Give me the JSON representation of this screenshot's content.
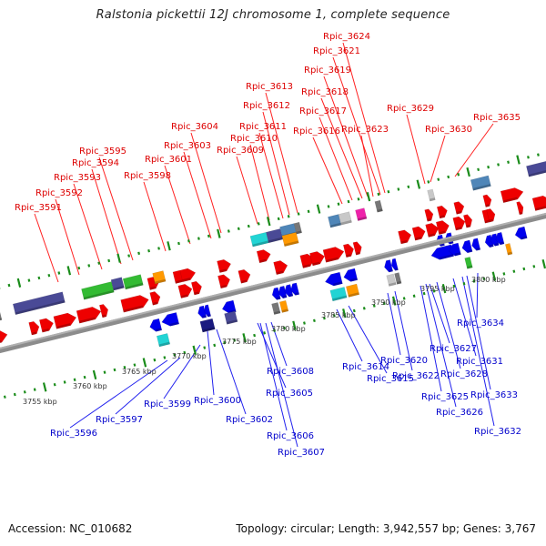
{
  "title": "Ralstonia pickettii 12J chromosome 1, complete sequence",
  "footer": {
    "accession": "Accession: NC_010682",
    "summary": "Topology: circular; Length: 3,942,557 bp; Genes: 3,767"
  },
  "colors": {
    "plus_strand_label": "#dd0000",
    "minus_strand_label": "#0000cc",
    "backbone": "#8c8c8c",
    "tick": "#1a8c1a",
    "cds_plus": "#ee0000",
    "cds_minus": "#0000ee"
  },
  "scale_labels": [
    "3755 kbp",
    "3760 kbp",
    "3765 kbp",
    "3770 kbp",
    "3775 kbp",
    "3780 kbp",
    "3785 kbp",
    "3790 kbp",
    "3795 kbp",
    "3800 kbp"
  ],
  "plus_labels": [
    "Rpic_3591",
    "Rpic_3592",
    "Rpic_3593",
    "Rpic_3594",
    "Rpic_3595",
    "Rpic_3598",
    "Rpic_3601",
    "Rpic_3603",
    "Rpic_3604",
    "Rpic_3609",
    "Rpic_3610",
    "Rpic_3611",
    "Rpic_3612",
    "Rpic_3613",
    "Rpic_3616",
    "Rpic_3617",
    "Rpic_3618",
    "Rpic_3619",
    "Rpic_3621",
    "Rpic_3624",
    "Rpic_3623",
    "Rpic_3629",
    "Rpic_3630",
    "Rpic_3635"
  ],
  "minus_labels": [
    "Rpic_3596",
    "Rpic_3597",
    "Rpic_3599",
    "Rpic_3600",
    "Rpic_3602",
    "Rpic_3605",
    "Rpic_3606",
    "Rpic_3607",
    "Rpic_3608",
    "Rpic_3614",
    "Rpic_3615",
    "Rpic_3620",
    "Rpic_3622",
    "Rpic_3625",
    "Rpic_3626",
    "Rpic_3627",
    "Rpic_3628",
    "Rpic_3631",
    "Rpic_3632",
    "Rpic_3633",
    "Rpic_3634"
  ],
  "feature_types": {
    "red": "cds-plus",
    "blue": "cds-minus",
    "purple": "#4a4a96",
    "green": "#33bb33",
    "cyan": "#22d4d4",
    "orange": "#ff9900",
    "steelblue": "#4f86b8",
    "gray": "#777777",
    "lightgray": "#c8c8c8",
    "magenta": "#ee22aa",
    "navy": "#1a1a80",
    "lavender": "#6e66cc"
  }
}
